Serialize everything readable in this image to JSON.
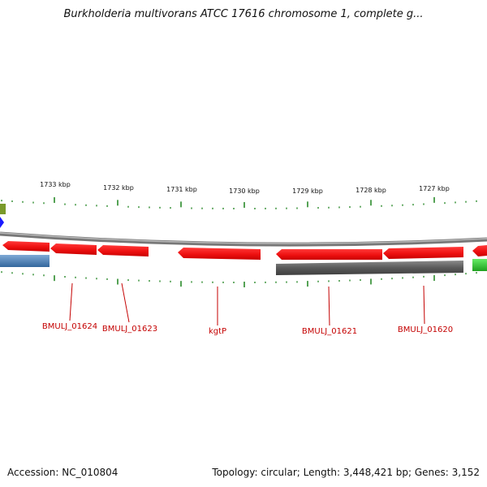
{
  "title": "Burkholderia multivorans ATCC 17616 chromosome 1, complete g...",
  "scale": {
    "ticks": [
      {
        "label": "1733 kbp"
      },
      {
        "label": "1732 kbp"
      },
      {
        "label": "1731 kbp"
      },
      {
        "label": "1730 kbp"
      },
      {
        "label": "1729 kbp"
      },
      {
        "label": "1728 kbp"
      },
      {
        "label": "1727 kbp"
      }
    ]
  },
  "genes": [
    {
      "label": "BMULJ_01624"
    },
    {
      "label": "BMULJ_01623"
    },
    {
      "label": "kgtP"
    },
    {
      "label": "BMULJ_01621"
    },
    {
      "label": "BMULJ_01620"
    }
  ],
  "colors": {
    "gene": "#ee1111",
    "gene_label": "#c40000",
    "tick": "#2a8a2a",
    "backbone": "#8a8a8a",
    "blue_feature": "#4a7fb5",
    "gray_feature": "#5a5a5a",
    "green_feature": "#33cc33",
    "olive_feature": "#7a9a2a",
    "marker": "#1a1aff"
  },
  "footer": {
    "accession": "Accession: NC_010804",
    "summary": "Topology: circular; Length: 3,448,421 bp; Genes: 3,152"
  }
}
